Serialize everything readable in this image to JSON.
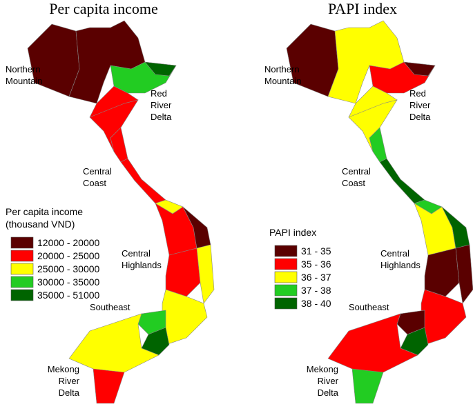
{
  "maps": [
    {
      "title": "Per capita income",
      "legend": {
        "title": [
          "Per capita income",
          "(thousand VND)"
        ],
        "items": [
          {
            "label": "12000 - 20000",
            "color": "#5a0000"
          },
          {
            "label": "20000 - 25000",
            "color": "#ff0000"
          },
          {
            "label": "25000 - 30000",
            "color": "#ffff00"
          },
          {
            "label": "30000 - 35000",
            "color": "#22cc22"
          },
          {
            "label": "35000 - 51000",
            "color": "#006400"
          }
        ]
      },
      "regions": [
        [
          "Northern",
          "Mountain"
        ],
        [
          "Red",
          "River",
          "Delta"
        ],
        [
          "Central",
          "Coast"
        ],
        [
          "Central",
          "Highlands"
        ],
        [
          "Southeast"
        ],
        [
          "Mekong",
          "River",
          "Delta"
        ]
      ]
    },
    {
      "title": "PAPI index",
      "legend": {
        "title": [
          "PAPI index"
        ],
        "items": [
          {
            "label": "31 - 35",
            "color": "#5a0000"
          },
          {
            "label": "35 - 36",
            "color": "#ff0000"
          },
          {
            "label": "36 - 37",
            "color": "#ffff00"
          },
          {
            "label": "37 - 38",
            "color": "#22cc22"
          },
          {
            "label": "38 - 40",
            "color": "#006400"
          }
        ]
      },
      "regions": [
        [
          "Northern",
          "Mountain"
        ],
        [
          "Red",
          "River",
          "Delta"
        ],
        [
          "Central",
          "Coast"
        ],
        [
          "Central",
          "Highlands"
        ],
        [
          "Southeast"
        ],
        [
          "Mekong",
          "River",
          "Delta"
        ]
      ]
    }
  ]
}
